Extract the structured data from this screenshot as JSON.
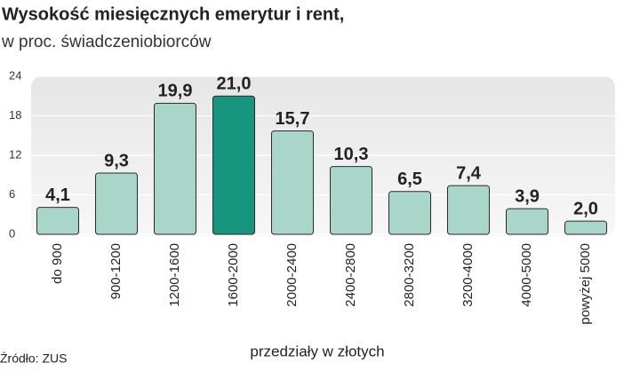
{
  "chart_data": {
    "type": "bar",
    "title": "Wysokość miesięcznych emerytur i rent,",
    "subtitle": "w proc. świadczeniobiorców",
    "x_label": "przedziały w złotych",
    "source": "Źródło: ZUS",
    "categories": [
      "do 900",
      "900-1200",
      "1200-1600",
      "1600-2000",
      "2000-2400",
      "2400-2800",
      "2800-3200",
      "3200-4000",
      "4000-5000",
      "powyżej 5000"
    ],
    "values": [
      4.1,
      9.3,
      19.9,
      21.0,
      15.7,
      10.3,
      6.5,
      7.4,
      3.9,
      2.0
    ],
    "value_labels": [
      "4,1",
      "9,3",
      "19,9",
      "21,0",
      "15,7",
      "10,3",
      "6,5",
      "7,4",
      "3,9",
      "2,0"
    ],
    "colors": [
      "#a9d6c9",
      "#a9d6c9",
      "#a9d6c9",
      "#17957f",
      "#a9d6c9",
      "#a9d6c9",
      "#a9d6c9",
      "#a9d6c9",
      "#a9d6c9",
      "#a9d6c9"
    ],
    "ylim": [
      0,
      24
    ],
    "yticks": [
      0,
      6,
      12,
      18,
      24
    ],
    "grid": true
  }
}
